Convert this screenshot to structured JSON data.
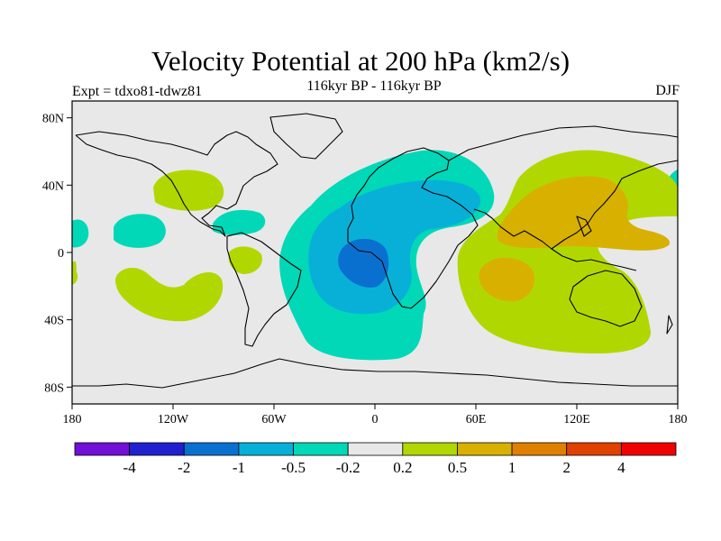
{
  "title": "Velocity Potential at 200 hPa (km2/s)",
  "left_label": "Expt = tdxo81-tdwz81",
  "center_label": "116kyr BP - 116kyr BP",
  "right_label": "DJF",
  "map": {
    "lon_range": [
      -180,
      180
    ],
    "lat_range": [
      -90,
      90
    ],
    "lat_ticks": [
      {
        "value": 80,
        "label": "80N"
      },
      {
        "value": 40,
        "label": "40N"
      },
      {
        "value": 0,
        "label": "0"
      },
      {
        "value": -40,
        "label": "40S"
      },
      {
        "value": -80,
        "label": "80S"
      }
    ],
    "lon_ticks": [
      {
        "value": -180,
        "label": "180"
      },
      {
        "value": -120,
        "label": "120W"
      },
      {
        "value": -60,
        "label": "60W"
      },
      {
        "value": 0,
        "label": "0"
      },
      {
        "value": 60,
        "label": "60E"
      },
      {
        "value": 120,
        "label": "120E"
      },
      {
        "value": 180,
        "label": "180"
      }
    ],
    "background_color": "#e8e8e8"
  },
  "colorbar": {
    "colors": [
      "#7010d8",
      "#2020d0",
      "#0a70d0",
      "#08b0d8",
      "#00d8b8",
      "#e8e8e8",
      "#b0d800",
      "#d8b000",
      "#e08000",
      "#e04000",
      "#f00000"
    ],
    "labels": [
      "-4",
      "-2",
      "-1",
      "-0.5",
      "-0.2",
      "0.2",
      "0.5",
      "1",
      "2",
      "4"
    ]
  }
}
